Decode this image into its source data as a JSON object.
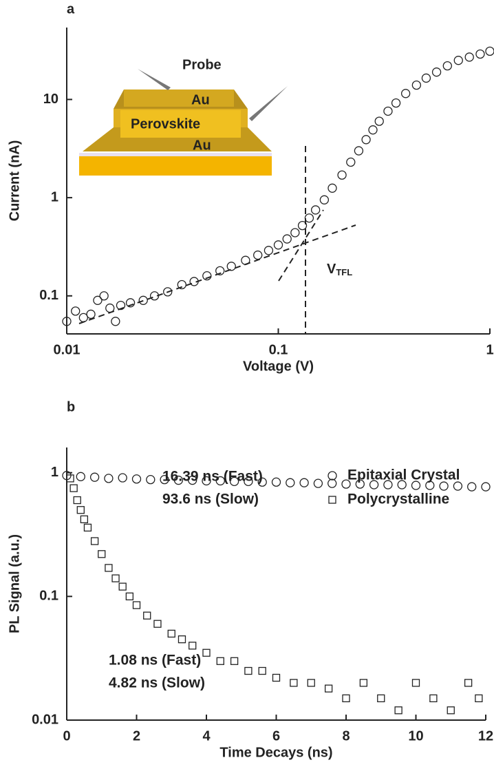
{
  "chart_data": [
    {
      "type": "scatter",
      "panel": "a",
      "xlabel": "Voltage (V)",
      "ylabel": "Current (nA)",
      "xscale": "log",
      "yscale": "log",
      "xlim": [
        0.01,
        1
      ],
      "ylim": [
        0.041,
        54
      ],
      "xticks": [
        0.01,
        0.1,
        1
      ],
      "yticks": [
        0.1,
        1,
        10
      ],
      "inset_labels": [
        "Probe",
        "Au",
        "Perovskite",
        "Au"
      ],
      "annotation": {
        "text": "V",
        "sub": "TFL"
      },
      "series": [
        {
          "color": "#222222",
          "marker": "circle",
          "x": [
            0.01,
            0.011,
            0.012,
            0.013,
            0.014,
            0.015,
            0.016,
            0.017,
            0.018,
            0.02,
            0.023,
            0.026,
            0.03,
            0.035,
            0.04,
            0.046,
            0.053,
            0.06,
            0.07,
            0.08,
            0.09,
            0.1,
            0.11,
            0.12,
            0.13,
            0.14,
            0.15,
            0.165,
            0.18,
            0.2,
            0.22,
            0.24,
            0.26,
            0.28,
            0.3,
            0.33,
            0.36,
            0.4,
            0.45,
            0.5,
            0.56,
            0.63,
            0.71,
            0.8,
            0.9,
            1.0
          ],
          "values": [
            0.055,
            0.07,
            0.06,
            0.065,
            0.09,
            0.1,
            0.075,
            0.055,
            0.08,
            0.085,
            0.09,
            0.1,
            0.11,
            0.13,
            0.14,
            0.16,
            0.18,
            0.2,
            0.23,
            0.26,
            0.29,
            0.33,
            0.38,
            0.44,
            0.52,
            0.62,
            0.75,
            0.95,
            1.25,
            1.7,
            2.3,
            3.0,
            3.9,
            4.9,
            6.0,
            7.6,
            9.2,
            11.5,
            14,
            16.5,
            19,
            22,
            25,
            27,
            29,
            31
          ]
        }
      ]
    },
    {
      "type": "scatter",
      "panel": "b",
      "xlabel": "Time Decays (ns)",
      "ylabel": "PL Signal (a.u.)",
      "xscale": "linear",
      "yscale": "log",
      "xlim": [
        0,
        12
      ],
      "ylim": [
        0.01,
        1.6
      ],
      "xticks": [
        0,
        2,
        4,
        6,
        8,
        10,
        12
      ],
      "yticks": [
        0.01,
        0.1,
        1
      ],
      "annotations": [
        "16.39 ns (Fast)",
        "93.6 ns (Slow)",
        "1.08 ns (Fast)",
        "4.82 ns (Slow)"
      ],
      "series": [
        {
          "name": "Epitaxial Crystal",
          "color": "#222222",
          "marker": "circle",
          "x": [
            0,
            0.4,
            0.8,
            1.2,
            1.6,
            2.0,
            2.4,
            2.8,
            3.2,
            3.6,
            4.0,
            4.4,
            4.8,
            5.2,
            5.6,
            6.0,
            6.4,
            6.8,
            7.2,
            7.6,
            8.0,
            8.4,
            8.8,
            9.2,
            9.6,
            10.0,
            10.4,
            10.8,
            11.2,
            11.6,
            12.0
          ],
          "values": [
            0.95,
            0.93,
            0.92,
            0.9,
            0.91,
            0.89,
            0.88,
            0.88,
            0.87,
            0.87,
            0.86,
            0.86,
            0.85,
            0.85,
            0.84,
            0.84,
            0.83,
            0.83,
            0.82,
            0.82,
            0.81,
            0.81,
            0.8,
            0.8,
            0.8,
            0.79,
            0.79,
            0.78,
            0.78,
            0.77,
            0.77
          ]
        },
        {
          "name": "Polycrystalline",
          "color": "#222222",
          "marker": "square",
          "x": [
            0.1,
            0.2,
            0.3,
            0.4,
            0.5,
            0.6,
            0.8,
            1.0,
            1.2,
            1.4,
            1.6,
            1.8,
            2.0,
            2.3,
            2.6,
            3.0,
            3.3,
            3.6,
            4.0,
            4.4,
            4.8,
            5.2,
            5.6,
            6.0,
            6.5,
            7.0,
            7.5,
            8.0,
            8.5,
            9.0,
            9.5,
            10.0,
            10.5,
            11.0,
            11.5,
            11.8
          ],
          "values": [
            0.9,
            0.75,
            0.6,
            0.5,
            0.42,
            0.36,
            0.28,
            0.22,
            0.17,
            0.14,
            0.12,
            0.1,
            0.085,
            0.07,
            0.06,
            0.05,
            0.045,
            0.04,
            0.035,
            0.03,
            0.03,
            0.025,
            0.025,
            0.022,
            0.02,
            0.02,
            0.018,
            0.015,
            0.02,
            0.015,
            0.012,
            0.02,
            0.015,
            0.012,
            0.02,
            0.015
          ]
        }
      ]
    }
  ]
}
